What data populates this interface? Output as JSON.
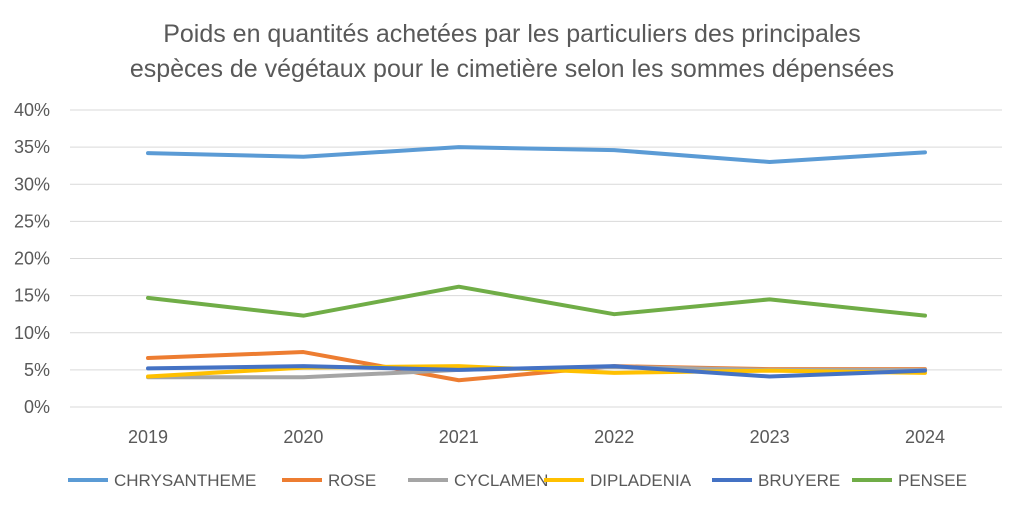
{
  "chart_data": {
    "type": "line",
    "title": [
      "Poids en quantités achetées par les particuliers des principales",
      "espèces de végétaux pour le cimetière selon les sommes dépensées"
    ],
    "categories": [
      "2019",
      "2020",
      "2021",
      "2022",
      "2023",
      "2024"
    ],
    "ylim": [
      0,
      40
    ],
    "yticks": [
      "0%",
      "5%",
      "10%",
      "15%",
      "20%",
      "25%",
      "30%",
      "35%",
      "40%"
    ],
    "grid": true,
    "legend": "bottom",
    "series": [
      {
        "name": "CHRYSANTHEME",
        "color": "#5B9BD5",
        "values": [
          34.2,
          33.7,
          35.0,
          34.6,
          33.0,
          34.3
        ]
      },
      {
        "name": "ROSE",
        "color": "#ED7D31",
        "values": [
          6.6,
          7.4,
          3.6,
          5.5,
          5.1,
          5.1
        ]
      },
      {
        "name": "CYCLAMEN",
        "color": "#A5A5A5",
        "values": [
          4.0,
          4.0,
          5.0,
          5.4,
          5.0,
          5.0
        ]
      },
      {
        "name": "DIPLADENIA",
        "color": "#FFC000",
        "values": [
          4.1,
          5.3,
          5.5,
          4.6,
          4.9,
          4.6
        ]
      },
      {
        "name": "BRUYERE",
        "color": "#4472C4",
        "values": [
          5.2,
          5.5,
          5.0,
          5.5,
          4.1,
          4.9
        ]
      },
      {
        "name": "PENSEE",
        "color": "#70AD47",
        "values": [
          14.7,
          12.3,
          16.2,
          12.5,
          14.5,
          12.3
        ]
      }
    ]
  }
}
